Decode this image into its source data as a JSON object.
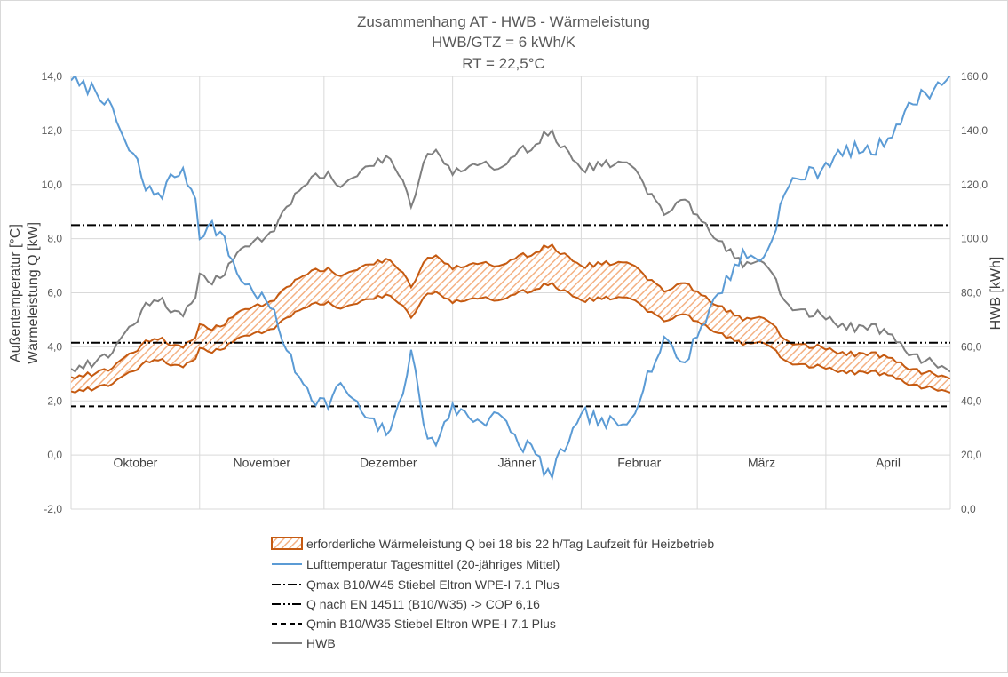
{
  "chart_data": {
    "type": "line",
    "title": "Zusammenhang AT - HWB - Wärmeleistung",
    "subtitle_1": "HWB/GTZ = 6 kWh/K",
    "subtitle_2": "RT = 22,5°C",
    "ylabel_left_1": "Außentemperatur [°C]",
    "ylabel_left_2": "Wärmeleistung Q [kW]",
    "ylabel_right": "HWB [kWh]",
    "ylim_left": [
      -2,
      14
    ],
    "ylim_right": [
      0,
      160
    ],
    "y_ticks_left": [
      "-2,0",
      "0,0",
      "2,0",
      "4,0",
      "6,0",
      "8,0",
      "10,0",
      "12,0",
      "14,0"
    ],
    "y_ticks_right": [
      "0,0",
      "20,0",
      "40,0",
      "60,0",
      "80,0",
      "100,0",
      "120,0",
      "140,0",
      "160,0"
    ],
    "x_range": [
      0,
      212
    ],
    "months": [
      {
        "label": "Oktober",
        "start": 0,
        "end": 31
      },
      {
        "label": "November",
        "start": 31,
        "end": 61
      },
      {
        "label": "Dezember",
        "start": 61,
        "end": 92
      },
      {
        "label": "Jänner",
        "start": 92,
        "end": 123
      },
      {
        "label": "Februar",
        "start": 123,
        "end": 151
      },
      {
        "label": "März",
        "start": 151,
        "end": 182
      },
      {
        "label": "April",
        "start": 182,
        "end": 212
      }
    ],
    "temperature_profile": [
      [
        0,
        14.0
      ],
      [
        2,
        13.6
      ],
      [
        4,
        13.6
      ],
      [
        6,
        13.5
      ],
      [
        8,
        13.2
      ],
      [
        10,
        12.6
      ],
      [
        12,
        12.0
      ],
      [
        14,
        11.2
      ],
      [
        16,
        10.8
      ],
      [
        18,
        9.8
      ],
      [
        20,
        9.7
      ],
      [
        22,
        9.7
      ],
      [
        24,
        10.2
      ],
      [
        26,
        10.5
      ],
      [
        28,
        10.2
      ],
      [
        30,
        9.5
      ],
      [
        31,
        8.2
      ],
      [
        32,
        8.3
      ],
      [
        34,
        8.5
      ],
      [
        36,
        8.2
      ],
      [
        38,
        7.5
      ],
      [
        40,
        6.8
      ],
      [
        42,
        6.3
      ],
      [
        44,
        6.1
      ],
      [
        46,
        5.8
      ],
      [
        48,
        5.5
      ],
      [
        50,
        4.7
      ],
      [
        52,
        4.0
      ],
      [
        54,
        3.0
      ],
      [
        56,
        2.8
      ],
      [
        58,
        2.2
      ],
      [
        60,
        2.0
      ],
      [
        62,
        1.9
      ],
      [
        64,
        2.4
      ],
      [
        66,
        2.5
      ],
      [
        68,
        2.0
      ],
      [
        70,
        1.6
      ],
      [
        72,
        1.2
      ],
      [
        74,
        1.0
      ],
      [
        76,
        0.9
      ],
      [
        78,
        1.2
      ],
      [
        80,
        2.4
      ],
      [
        82,
        4.0
      ],
      [
        84,
        2.0
      ],
      [
        86,
        0.6
      ],
      [
        88,
        0.4
      ],
      [
        90,
        1.3
      ],
      [
        92,
        1.7
      ],
      [
        94,
        1.6
      ],
      [
        96,
        1.4
      ],
      [
        98,
        1.3
      ],
      [
        100,
        1.3
      ],
      [
        102,
        1.6
      ],
      [
        104,
        1.2
      ],
      [
        106,
        1.0
      ],
      [
        108,
        0.3
      ],
      [
        110,
        0.4
      ],
      [
        112,
        0.0
      ],
      [
        114,
        -0.5
      ],
      [
        116,
        -0.8
      ],
      [
        118,
        0.0
      ],
      [
        120,
        0.6
      ],
      [
        122,
        1.0
      ],
      [
        124,
        1.5
      ],
      [
        126,
        1.4
      ],
      [
        128,
        1.1
      ],
      [
        130,
        1.2
      ],
      [
        132,
        1.0
      ],
      [
        134,
        1.2
      ],
      [
        136,
        1.8
      ],
      [
        138,
        2.6
      ],
      [
        140,
        3.3
      ],
      [
        142,
        3.8
      ],
      [
        144,
        4.4
      ],
      [
        146,
        3.6
      ],
      [
        148,
        3.4
      ],
      [
        150,
        4.2
      ],
      [
        152,
        4.8
      ],
      [
        154,
        5.3
      ],
      [
        156,
        6.0
      ],
      [
        158,
        6.4
      ],
      [
        160,
        7.0
      ],
      [
        162,
        7.4
      ],
      [
        164,
        7.3
      ],
      [
        166,
        7.3
      ],
      [
        168,
        7.5
      ],
      [
        170,
        8.6
      ],
      [
        172,
        9.6
      ],
      [
        174,
        10.1
      ],
      [
        176,
        10.3
      ],
      [
        178,
        10.4
      ],
      [
        180,
        10.5
      ],
      [
        182,
        10.8
      ],
      [
        184,
        11.0
      ],
      [
        186,
        11.1
      ],
      [
        188,
        11.3
      ],
      [
        190,
        11.3
      ],
      [
        192,
        11.2
      ],
      [
        194,
        11.3
      ],
      [
        196,
        11.6
      ],
      [
        198,
        12.0
      ],
      [
        200,
        12.4
      ],
      [
        202,
        12.8
      ],
      [
        204,
        13.2
      ],
      [
        206,
        13.4
      ],
      [
        208,
        13.5
      ],
      [
        210,
        13.8
      ],
      [
        212,
        14.0
      ]
    ],
    "q_levels": {
      "qmax_b10_w45": 8.5,
      "q_en14511_b10_w35": 4.15,
      "qmin_b10_w35": 1.8
    },
    "legend": [
      "erforderliche Wärmeleistung Q bei 18 bis 22 h/Tag Laufzeit für Heizbetrieb",
      "Lufttemperatur Tagesmittel (20-jähriges Mittel)",
      "Qmax B10/W45 Stiebel Eltron WPE-I 7.1 Plus",
      "Q nach EN 14511 (B10/W35) -> COP 6,16",
      "Qmin B10/W35 Stiebel Eltron WPE-I 7.1 Plus",
      "HWB"
    ],
    "colors": {
      "temperature": "#5b9bd5",
      "hwb": "#7f7f7f",
      "band_stroke": "#c55a11",
      "band_hatch": "#f4b183",
      "grid": "#d9d9d9",
      "ref_line": "#000000",
      "text": "#595959"
    },
    "rt": 22.5,
    "hwb_per_gtz": 6,
    "runtime_h": [
      18,
      22
    ]
  }
}
